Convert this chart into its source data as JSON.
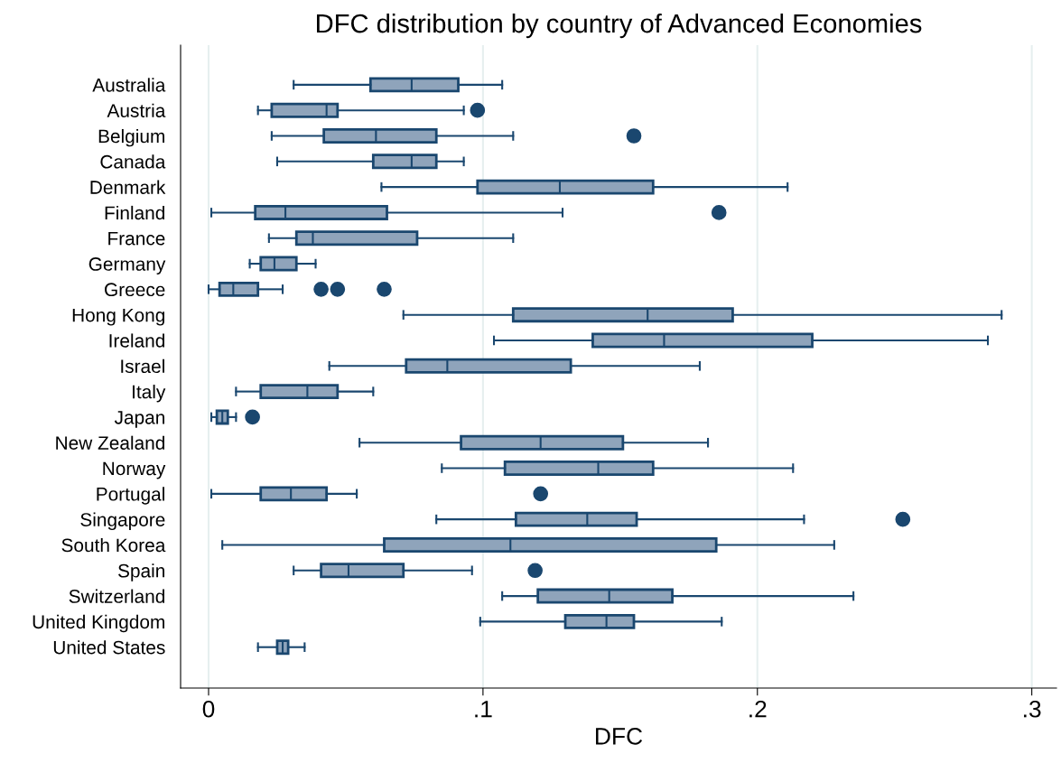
{
  "chart_data": {
    "type": "box",
    "orientation": "horizontal",
    "title": "DFC distribution by country of Advanced Economies",
    "xlabel": "DFC",
    "categories": [
      "Australia",
      "Austria",
      "Belgium",
      "Canada",
      "Denmark",
      "Finland",
      "France",
      "Germany",
      "Greece",
      "Hong Kong",
      "Ireland",
      "Israel",
      "Italy",
      "Japan",
      "New Zealand",
      "Norway",
      "Portugal",
      "Singapore",
      "South Korea",
      "Spain",
      "Switzerland",
      "United Kingdom",
      "United States"
    ],
    "boxes": [
      {
        "low": 0.031,
        "q1": 0.059,
        "median": 0.074,
        "q3": 0.091,
        "high": 0.107
      },
      {
        "low": 0.018,
        "q1": 0.023,
        "median": 0.043,
        "q3": 0.047,
        "high": 0.093,
        "outliers": [
          0.098
        ]
      },
      {
        "low": 0.023,
        "q1": 0.042,
        "median": 0.061,
        "q3": 0.083,
        "high": 0.111,
        "outliers": [
          0.155
        ]
      },
      {
        "low": 0.025,
        "q1": 0.06,
        "median": 0.074,
        "q3": 0.083,
        "high": 0.093
      },
      {
        "low": 0.063,
        "q1": 0.098,
        "median": 0.128,
        "q3": 0.162,
        "high": 0.211
      },
      {
        "low": 0.001,
        "q1": 0.017,
        "median": 0.028,
        "q3": 0.065,
        "high": 0.129,
        "outliers": [
          0.186
        ]
      },
      {
        "low": 0.022,
        "q1": 0.032,
        "median": 0.038,
        "q3": 0.076,
        "high": 0.111
      },
      {
        "low": 0.015,
        "q1": 0.019,
        "median": 0.024,
        "q3": 0.032,
        "high": 0.039
      },
      {
        "low": 0.0,
        "q1": 0.004,
        "median": 0.009,
        "q3": 0.018,
        "high": 0.027,
        "outliers": [
          0.041,
          0.047,
          0.064
        ]
      },
      {
        "low": 0.071,
        "q1": 0.111,
        "median": 0.16,
        "q3": 0.191,
        "high": 0.289
      },
      {
        "low": 0.104,
        "q1": 0.14,
        "median": 0.166,
        "q3": 0.22,
        "high": 0.284
      },
      {
        "low": 0.044,
        "q1": 0.072,
        "median": 0.087,
        "q3": 0.132,
        "high": 0.179
      },
      {
        "low": 0.01,
        "q1": 0.019,
        "median": 0.036,
        "q3": 0.047,
        "high": 0.06
      },
      {
        "low": 0.001,
        "q1": 0.003,
        "median": 0.005,
        "q3": 0.007,
        "high": 0.01,
        "outliers": [
          0.016
        ]
      },
      {
        "low": 0.055,
        "q1": 0.092,
        "median": 0.121,
        "q3": 0.151,
        "high": 0.182
      },
      {
        "low": 0.085,
        "q1": 0.108,
        "median": 0.142,
        "q3": 0.162,
        "high": 0.213
      },
      {
        "low": 0.001,
        "q1": 0.019,
        "median": 0.03,
        "q3": 0.043,
        "high": 0.054,
        "outliers": [
          0.121
        ]
      },
      {
        "low": 0.083,
        "q1": 0.112,
        "median": 0.138,
        "q3": 0.156,
        "high": 0.217,
        "outliers": [
          0.253
        ]
      },
      {
        "low": 0.005,
        "q1": 0.064,
        "median": 0.11,
        "q3": 0.185,
        "high": 0.228
      },
      {
        "low": 0.031,
        "q1": 0.041,
        "median": 0.051,
        "q3": 0.071,
        "high": 0.096,
        "outliers": [
          0.119
        ]
      },
      {
        "low": 0.107,
        "q1": 0.12,
        "median": 0.146,
        "q3": 0.169,
        "high": 0.235
      },
      {
        "low": 0.099,
        "q1": 0.13,
        "median": 0.145,
        "q3": 0.155,
        "high": 0.187
      },
      {
        "low": 0.018,
        "q1": 0.025,
        "median": 0.027,
        "q3": 0.029,
        "high": 0.035
      }
    ],
    "color": "#8fa4bb",
    "xlim": [
      -0.0102,
      0.309
    ],
    "xticks": [
      0,
      {
        "value": 0.1,
        "label": ".1"
      },
      {
        "value": 0.2,
        "label": ".2"
      },
      {
        "value": 0.3,
        "label": ".3"
      }
    ],
    "grid": "x",
    "legend": false
  }
}
